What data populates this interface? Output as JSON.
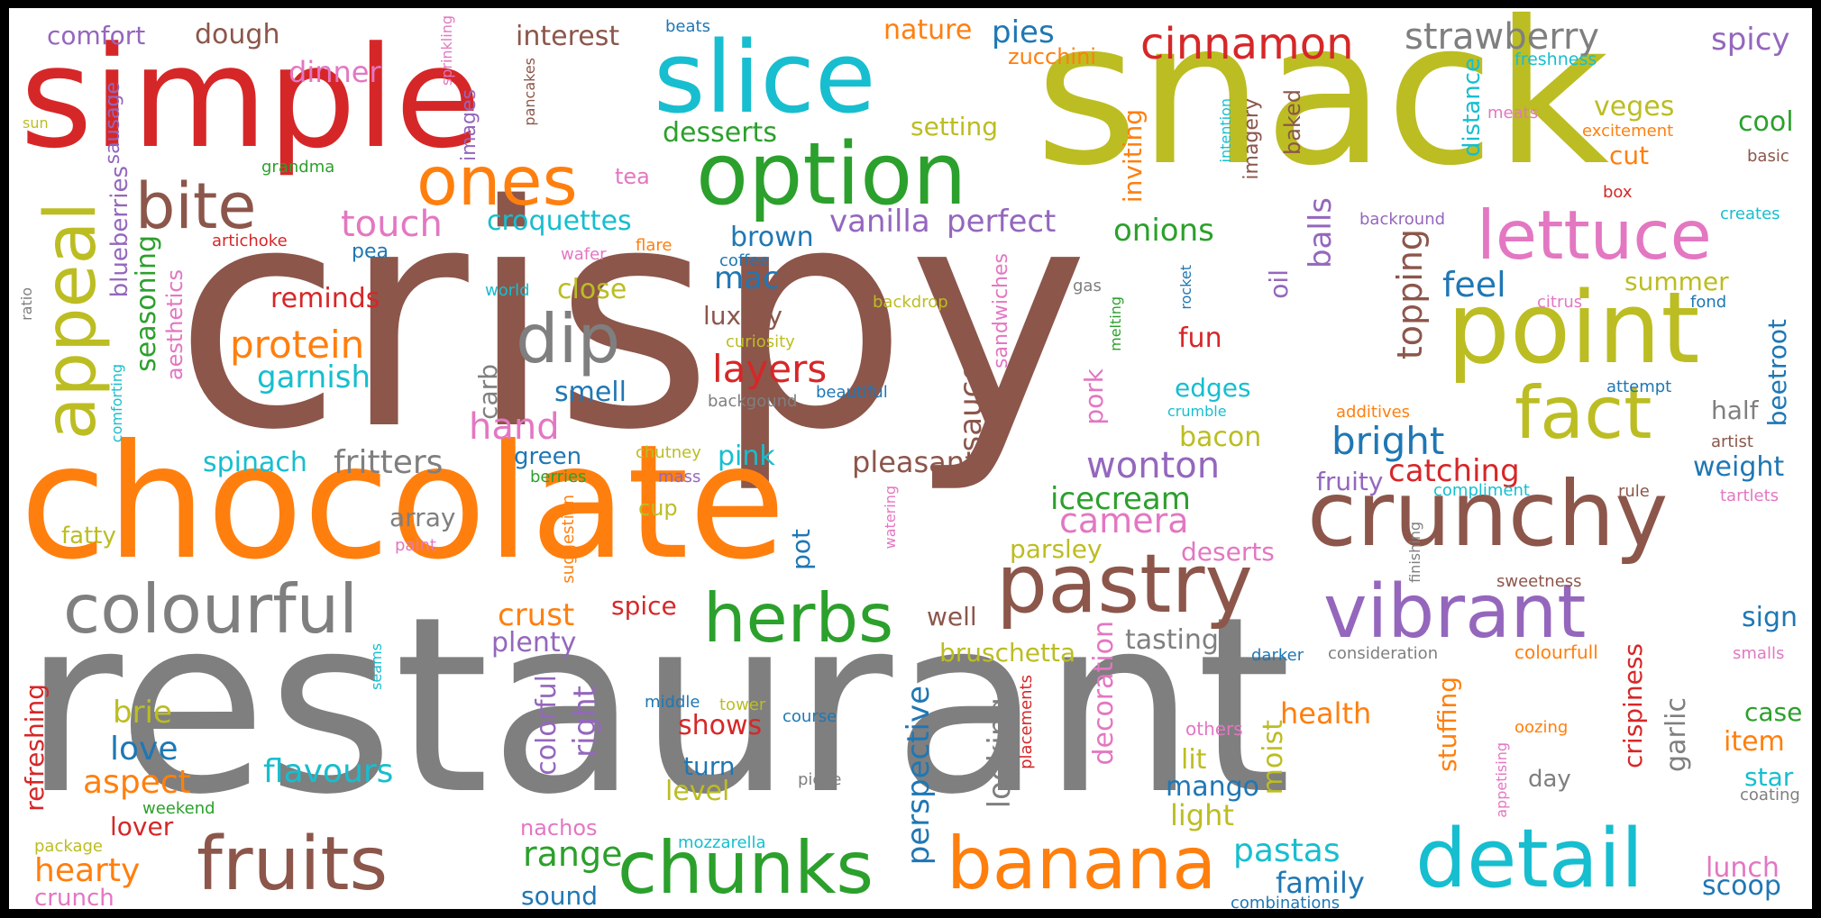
{
  "palette": {
    "blue": "#1f77b4",
    "orange": "#ff7f0e",
    "green": "#2ca02c",
    "red": "#d62728",
    "purple": "#9467bd",
    "brown": "#8c564b",
    "pink": "#e377c2",
    "gray": "#7f7f7f",
    "olive": "#bcbd22",
    "cyan": "#17becf"
  },
  "words": [
    {
      "text": "crispy",
      "color": "brown"
    },
    {
      "text": "restaurant",
      "color": "gray"
    },
    {
      "text": "snack",
      "color": "olive"
    },
    {
      "text": "chocolate",
      "color": "orange"
    },
    {
      "text": "simple",
      "color": "red"
    },
    {
      "text": "slice",
      "color": "cyan"
    },
    {
      "text": "option",
      "color": "green"
    },
    {
      "text": "point",
      "color": "olive"
    },
    {
      "text": "crunchy",
      "color": "brown"
    },
    {
      "text": "detail",
      "color": "cyan"
    },
    {
      "text": "banana",
      "color": "orange"
    },
    {
      "text": "fruits",
      "color": "brown"
    },
    {
      "text": "chunks",
      "color": "green"
    },
    {
      "text": "pastry",
      "color": "brown"
    },
    {
      "text": "vibrant",
      "color": "purple"
    },
    {
      "text": "appeal",
      "color": "olive"
    },
    {
      "text": "colourful",
      "color": "gray"
    },
    {
      "text": "lettuce",
      "color": "pink"
    },
    {
      "text": "fact",
      "color": "olive"
    },
    {
      "text": "ones",
      "color": "orange"
    },
    {
      "text": "herbs",
      "color": "green"
    },
    {
      "text": "dip",
      "color": "gray"
    },
    {
      "text": "bite",
      "color": "brown"
    },
    {
      "text": "cinnamon",
      "color": "red"
    },
    {
      "text": "strawberry",
      "color": "gray"
    },
    {
      "text": "comfort",
      "color": "purple"
    },
    {
      "text": "dough",
      "color": "brown"
    },
    {
      "text": "dinner",
      "color": "pink"
    },
    {
      "text": "interest",
      "color": "brown"
    },
    {
      "text": "beats",
      "color": "blue"
    },
    {
      "text": "nature",
      "color": "orange"
    },
    {
      "text": "pies",
      "color": "blue"
    },
    {
      "text": "zucchini",
      "color": "orange"
    },
    {
      "text": "spicy",
      "color": "purple"
    },
    {
      "text": "freshness",
      "color": "cyan"
    },
    {
      "text": "veges",
      "color": "olive"
    },
    {
      "text": "cool",
      "color": "green"
    },
    {
      "text": "meats",
      "color": "pink"
    },
    {
      "text": "excitement",
      "color": "orange"
    },
    {
      "text": "cut",
      "color": "orange"
    },
    {
      "text": "basic",
      "color": "brown"
    },
    {
      "text": "box",
      "color": "red"
    },
    {
      "text": "creates",
      "color": "cyan"
    },
    {
      "text": "backround",
      "color": "purple"
    },
    {
      "text": "sausage",
      "color": "purple"
    },
    {
      "text": "sprinkling",
      "color": "pink"
    },
    {
      "text": "pancakes",
      "color": "brown"
    },
    {
      "text": "images",
      "color": "purple"
    },
    {
      "text": "sun",
      "color": "olive"
    },
    {
      "text": "grandma",
      "color": "green"
    },
    {
      "text": "desserts",
      "color": "green"
    },
    {
      "text": "setting",
      "color": "olive"
    },
    {
      "text": "tea",
      "color": "pink"
    },
    {
      "text": "inviting",
      "color": "orange"
    },
    {
      "text": "intention",
      "color": "cyan"
    },
    {
      "text": "imagery",
      "color": "brown"
    },
    {
      "text": "baked",
      "color": "brown"
    },
    {
      "text": "distance",
      "color": "cyan"
    },
    {
      "text": "touch",
      "color": "pink"
    },
    {
      "text": "croquettes",
      "color": "cyan"
    },
    {
      "text": "vanilla",
      "color": "purple"
    },
    {
      "text": "perfect",
      "color": "purple"
    },
    {
      "text": "onions",
      "color": "green"
    },
    {
      "text": "balls",
      "color": "purple"
    },
    {
      "text": "artichoke",
      "color": "red"
    },
    {
      "text": "pea",
      "color": "blue"
    },
    {
      "text": "wafer",
      "color": "pink"
    },
    {
      "text": "flare",
      "color": "orange"
    },
    {
      "text": "coffee",
      "color": "blue"
    },
    {
      "text": "brown",
      "color": "blue"
    },
    {
      "text": "blueberries",
      "color": "purple"
    },
    {
      "text": "seasoning",
      "color": "green"
    },
    {
      "text": "aesthetics",
      "color": "pink"
    },
    {
      "text": "ratio",
      "color": "gray"
    },
    {
      "text": "reminds",
      "color": "red"
    },
    {
      "text": "world",
      "color": "cyan"
    },
    {
      "text": "close",
      "color": "olive"
    },
    {
      "text": "mac",
      "color": "blue"
    },
    {
      "text": "backdrop",
      "color": "olive"
    },
    {
      "text": "gas",
      "color": "gray"
    },
    {
      "text": "sandwiches",
      "color": "pink"
    },
    {
      "text": "rocket",
      "color": "blue"
    },
    {
      "text": "melting",
      "color": "green"
    },
    {
      "text": "oil",
      "color": "purple"
    },
    {
      "text": "topping",
      "color": "brown"
    },
    {
      "text": "feel",
      "color": "blue"
    },
    {
      "text": "citrus",
      "color": "pink"
    },
    {
      "text": "summer",
      "color": "olive"
    },
    {
      "text": "fond",
      "color": "blue"
    },
    {
      "text": "beetroot",
      "color": "blue"
    },
    {
      "text": "protein",
      "color": "orange"
    },
    {
      "text": "garnish",
      "color": "cyan"
    },
    {
      "text": "luxury",
      "color": "brown"
    },
    {
      "text": "curiosity",
      "color": "olive"
    },
    {
      "text": "layers",
      "color": "red"
    },
    {
      "text": "carb",
      "color": "gray"
    },
    {
      "text": "sauces",
      "color": "brown"
    },
    {
      "text": "pork",
      "color": "pink"
    },
    {
      "text": "fun",
      "color": "red"
    },
    {
      "text": "attempt",
      "color": "blue"
    },
    {
      "text": "half",
      "color": "gray"
    },
    {
      "text": "smell",
      "color": "blue"
    },
    {
      "text": "beautiful",
      "color": "blue"
    },
    {
      "text": "backgound",
      "color": "gray"
    },
    {
      "text": "edges",
      "color": "cyan"
    },
    {
      "text": "crumble",
      "color": "cyan"
    },
    {
      "text": "additives",
      "color": "orange"
    },
    {
      "text": "artist",
      "color": "brown"
    },
    {
      "text": "comforting",
      "color": "cyan"
    },
    {
      "text": "spinach",
      "color": "cyan"
    },
    {
      "text": "fritters",
      "color": "gray"
    },
    {
      "text": "hand",
      "color": "pink"
    },
    {
      "text": "green",
      "color": "blue"
    },
    {
      "text": "chutney",
      "color": "olive"
    },
    {
      "text": "pink",
      "color": "cyan"
    },
    {
      "text": "pleasant",
      "color": "brown"
    },
    {
      "text": "wonton",
      "color": "purple"
    },
    {
      "text": "bacon",
      "color": "olive"
    },
    {
      "text": "bright",
      "color": "blue"
    },
    {
      "text": "catching",
      "color": "red"
    },
    {
      "text": "weight",
      "color": "blue"
    },
    {
      "text": "berries",
      "color": "green"
    },
    {
      "text": "mass",
      "color": "purple"
    },
    {
      "text": "icecream",
      "color": "green"
    },
    {
      "text": "fruity",
      "color": "purple"
    },
    {
      "text": "compliment",
      "color": "cyan"
    },
    {
      "text": "rule",
      "color": "brown"
    },
    {
      "text": "tartlets",
      "color": "pink"
    },
    {
      "text": "fatty",
      "color": "olive"
    },
    {
      "text": "array",
      "color": "gray"
    },
    {
      "text": "suggestion",
      "color": "orange"
    },
    {
      "text": "cup",
      "color": "olive"
    },
    {
      "text": "watering",
      "color": "pink"
    },
    {
      "text": "camera",
      "color": "pink"
    },
    {
      "text": "paint",
      "color": "pink"
    },
    {
      "text": "pot",
      "color": "blue"
    },
    {
      "text": "parsley",
      "color": "olive"
    },
    {
      "text": "deserts",
      "color": "pink"
    },
    {
      "text": "finishing",
      "color": "gray"
    },
    {
      "text": "sweetness",
      "color": "brown"
    },
    {
      "text": "crust",
      "color": "orange"
    },
    {
      "text": "spice",
      "color": "red"
    },
    {
      "text": "well",
      "color": "brown"
    },
    {
      "text": "sign",
      "color": "blue"
    },
    {
      "text": "refreshing",
      "color": "red"
    },
    {
      "text": "plenty",
      "color": "purple"
    },
    {
      "text": "bruschetta",
      "color": "olive"
    },
    {
      "text": "tasting",
      "color": "gray"
    },
    {
      "text": "darker",
      "color": "blue"
    },
    {
      "text": "consideration",
      "color": "gray"
    },
    {
      "text": "colourfull",
      "color": "orange"
    },
    {
      "text": "smalls",
      "color": "pink"
    },
    {
      "text": "seams",
      "color": "cyan"
    },
    {
      "text": "brie",
      "color": "olive"
    },
    {
      "text": "colorful",
      "color": "purple"
    },
    {
      "text": "right",
      "color": "purple"
    },
    {
      "text": "middle",
      "color": "blue"
    },
    {
      "text": "tower",
      "color": "olive"
    },
    {
      "text": "course",
      "color": "blue"
    },
    {
      "text": "placements",
      "color": "red"
    },
    {
      "text": "perspective",
      "color": "blue"
    },
    {
      "text": "looking",
      "color": "gray"
    },
    {
      "text": "decoration",
      "color": "pink"
    },
    {
      "text": "moist",
      "color": "olive"
    },
    {
      "text": "others",
      "color": "pink"
    },
    {
      "text": "health",
      "color": "orange"
    },
    {
      "text": "stuffing",
      "color": "orange"
    },
    {
      "text": "garlic",
      "color": "gray"
    },
    {
      "text": "crispiness",
      "color": "red"
    },
    {
      "text": "oozing",
      "color": "orange"
    },
    {
      "text": "case",
      "color": "green"
    },
    {
      "text": "item",
      "color": "orange"
    },
    {
      "text": "love",
      "color": "blue"
    },
    {
      "text": "flavours",
      "color": "cyan"
    },
    {
      "text": "shows",
      "color": "red"
    },
    {
      "text": "aspect",
      "color": "orange"
    },
    {
      "text": "turn",
      "color": "blue"
    },
    {
      "text": "piece",
      "color": "gray"
    },
    {
      "text": "level",
      "color": "olive"
    },
    {
      "text": "lit",
      "color": "olive"
    },
    {
      "text": "mango",
      "color": "blue"
    },
    {
      "text": "appetising",
      "color": "pink"
    },
    {
      "text": "day",
      "color": "gray"
    },
    {
      "text": "star",
      "color": "cyan"
    },
    {
      "text": "coating",
      "color": "gray"
    },
    {
      "text": "weekend",
      "color": "green"
    },
    {
      "text": "lover",
      "color": "red"
    },
    {
      "text": "nachos",
      "color": "pink"
    },
    {
      "text": "light",
      "color": "olive"
    },
    {
      "text": "range",
      "color": "green"
    },
    {
      "text": "hearty",
      "color": "orange"
    },
    {
      "text": "package",
      "color": "olive"
    },
    {
      "text": "crunch",
      "color": "pink"
    },
    {
      "text": "sound",
      "color": "blue"
    },
    {
      "text": "mozzarella",
      "color": "cyan"
    },
    {
      "text": "pastas",
      "color": "cyan"
    },
    {
      "text": "family",
      "color": "blue"
    },
    {
      "text": "combinations",
      "color": "blue"
    },
    {
      "text": "lunch",
      "color": "pink"
    },
    {
      "text": "scoop",
      "color": "blue"
    }
  ]
}
